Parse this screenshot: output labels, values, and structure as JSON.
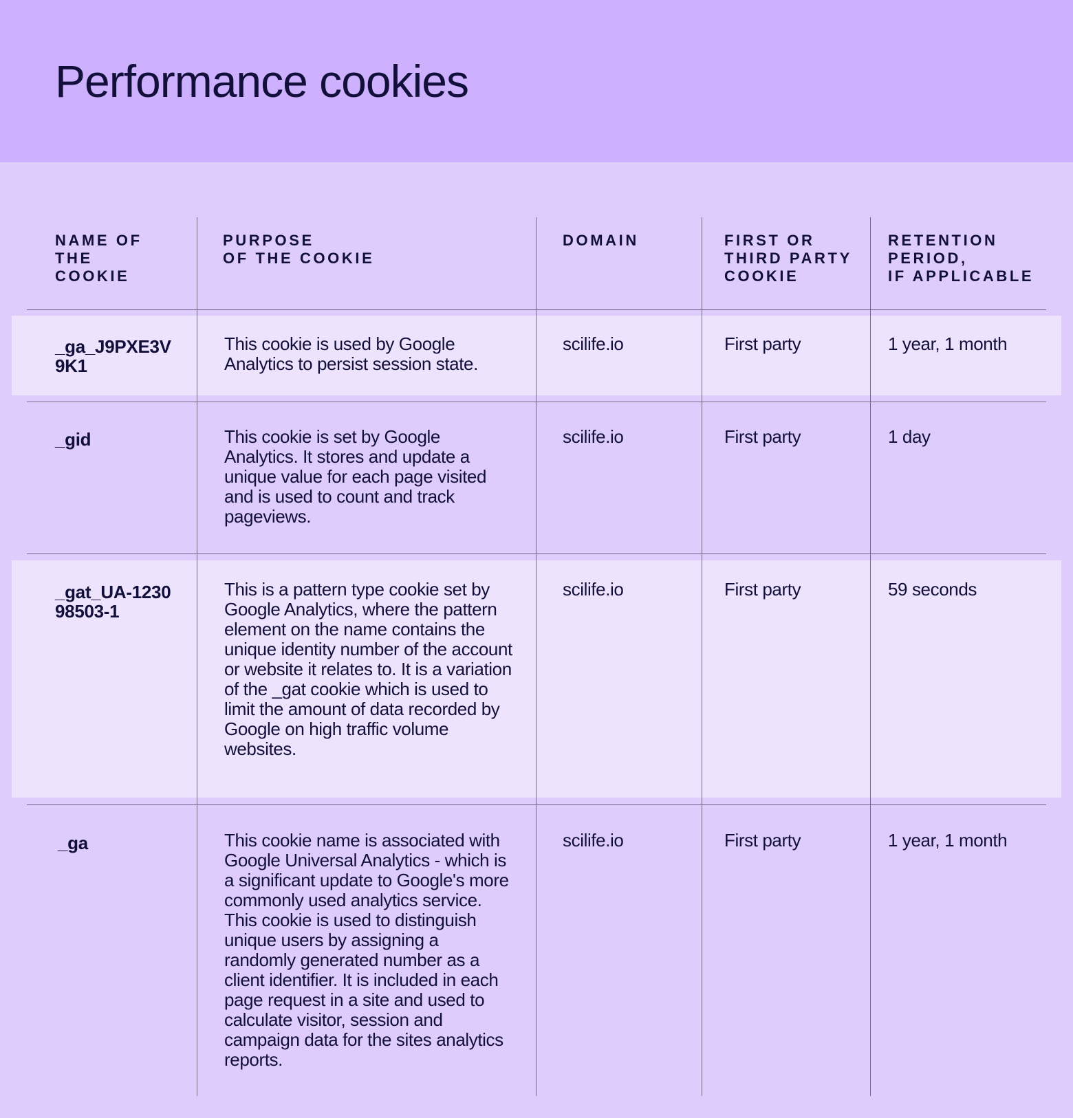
{
  "page": {
    "title": "Performance cookies"
  },
  "table": {
    "headers": [
      "NAME OF\nTHE\nCOOKIE",
      "PURPOSE\nOF THE COOKIE",
      "DOMAIN",
      "FIRST OR\nTHIRD PARTY\nCOOKIE",
      "RETENTION\nPERIOD,\nIF APPLICABLE"
    ],
    "rows": [
      {
        "name": "_ga_J9PXE3V9K1",
        "purpose": "This cookie is used by Google Analytics to persist session state.",
        "domain": "scilife.io",
        "party": "First party",
        "retention": "1 year, 1 month"
      },
      {
        "name": "_gid",
        "purpose": "This cookie is set by Google Analytics. It stores and update a unique value for each page visited and is used to count and track pageviews.",
        "domain": "scilife.io",
        "party": "First party",
        "retention": "1 day"
      },
      {
        "name": "_gat_UA-123098503-1",
        "purpose": "This is a pattern type cookie set by Google Analytics, where the pattern element on the name contains the unique identity number of the account or website it relates to. It is a variation of the _gat cookie which is used to limit the amount of data recorded by Google on high traffic volume websites.",
        "domain": "scilife.io",
        "party": "First party",
        "retention": "59 seconds"
      },
      {
        "name": "_ga",
        "purpose": "This cookie name is associated with Google Universal Analytics - which is a significant update to Google's more commonly used analytics service. This cookie is used to distinguish unique users by assigning a randomly generated number as a client identifier. It is included in each page request in a site and used to calculate visitor, session and campaign data for the sites analytics reports.",
        "domain": "scilife.io",
        "party": "First party",
        "retention": "1 year, 1 month"
      }
    ]
  }
}
